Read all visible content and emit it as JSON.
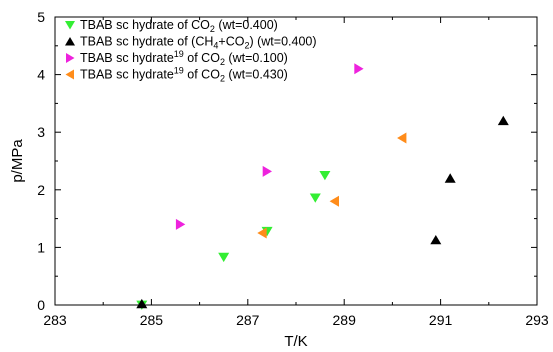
{
  "chart_data": {
    "type": "scatter",
    "xlabel": "T/K",
    "ylabel": "p/MPa",
    "xlim": [
      283,
      293
    ],
    "ylim": [
      0,
      5
    ],
    "x_ticks": [
      "283",
      "285",
      "287",
      "289",
      "291",
      "293"
    ],
    "y_ticks": [
      "0",
      "1",
      "2",
      "3",
      "4",
      "5"
    ],
    "legend_position": "top-left",
    "grid": false,
    "series": [
      {
        "legend_parts": [
          {
            "text": "TBAB sc hydrate of CO"
          },
          {
            "text": "2",
            "sub": true
          },
          {
            "text": " (wt=0.400)"
          }
        ],
        "marker": "triangle-down",
        "color": "#33ee33",
        "points": [
          {
            "x": 284.8,
            "y": 0.0
          },
          {
            "x": 286.5,
            "y": 0.83
          },
          {
            "x": 287.4,
            "y": 1.28
          },
          {
            "x": 288.4,
            "y": 1.86
          },
          {
            "x": 288.6,
            "y": 2.25
          }
        ]
      },
      {
        "legend_parts": [
          {
            "text": "TBAB sc hydrate of (CH"
          },
          {
            "text": "4",
            "sub": true
          },
          {
            "text": "+CO"
          },
          {
            "text": "2",
            "sub": true
          },
          {
            "text": ") (wt=0.400)"
          }
        ],
        "marker": "triangle-up",
        "color": "#000000",
        "points": [
          {
            "x": 284.8,
            "y": 0.02
          },
          {
            "x": 290.9,
            "y": 1.13
          },
          {
            "x": 291.2,
            "y": 2.2
          },
          {
            "x": 292.3,
            "y": 3.2
          }
        ]
      },
      {
        "legend_parts": [
          {
            "text": "TBAB sc hydrate"
          },
          {
            "text": "19",
            "sup": true
          },
          {
            "text": " of CO"
          },
          {
            "text": "2",
            "sub": true
          },
          {
            "text": " (wt=0.100)"
          }
        ],
        "marker": "triangle-right",
        "color": "#ee22dd",
        "points": [
          {
            "x": 285.6,
            "y": 1.4
          },
          {
            "x": 287.4,
            "y": 2.32
          },
          {
            "x": 289.3,
            "y": 4.1
          }
        ]
      },
      {
        "legend_parts": [
          {
            "text": "TBAB sc hydrate"
          },
          {
            "text": "19",
            "sup": true
          },
          {
            "text": " of CO"
          },
          {
            "text": "2",
            "sub": true
          },
          {
            "text": " (wt=0.430)"
          }
        ],
        "marker": "triangle-left",
        "color": "#ff8c1a",
        "points": [
          {
            "x": 287.3,
            "y": 1.25
          },
          {
            "x": 288.8,
            "y": 1.8
          },
          {
            "x": 290.2,
            "y": 2.9
          }
        ]
      }
    ]
  }
}
